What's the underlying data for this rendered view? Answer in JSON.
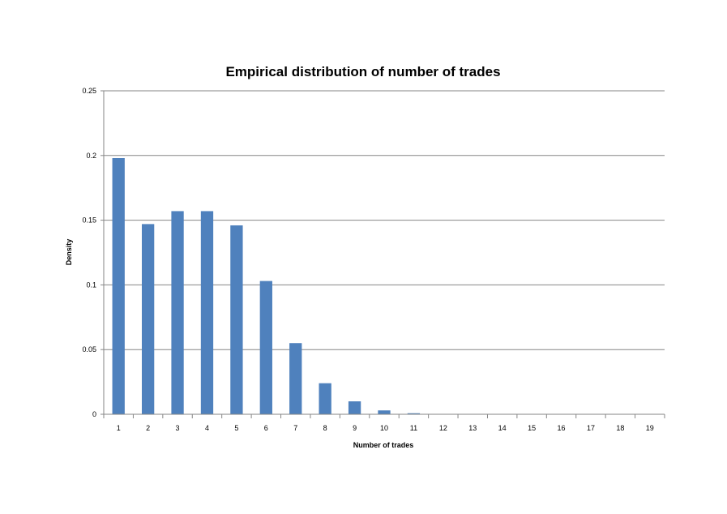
{
  "chart_data": {
    "type": "bar",
    "title": "Empirical distribution of number of trades",
    "xlabel": "Number of trades",
    "ylabel": "Density",
    "categories": [
      "1",
      "2",
      "3",
      "4",
      "5",
      "6",
      "7",
      "8",
      "9",
      "10",
      "11",
      "12",
      "13",
      "14",
      "15",
      "16",
      "17",
      "18",
      "19"
    ],
    "values": [
      0.198,
      0.147,
      0.157,
      0.157,
      0.146,
      0.103,
      0.055,
      0.024,
      0.01,
      0.003,
      0.0008,
      0.0002,
      0.0001,
      5e-05,
      0,
      0,
      0,
      0,
      0
    ],
    "ylim": [
      0,
      0.25
    ],
    "yticks": [
      "0",
      "0.05",
      "0.1",
      "0.15",
      "0.2",
      "0.25"
    ],
    "ytick_values": [
      0,
      0.05,
      0.1,
      0.15,
      0.2,
      0.25
    ],
    "grid": true,
    "legend": "none",
    "bar_color": "#4F81BD",
    "grid_color": "#868686"
  }
}
